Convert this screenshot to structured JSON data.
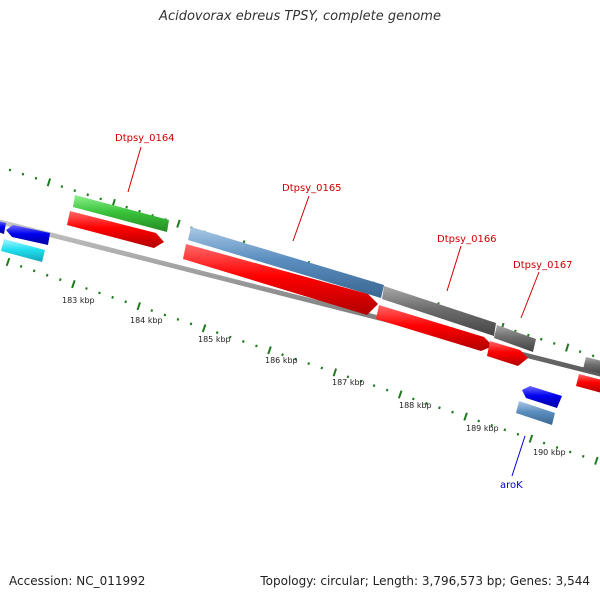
{
  "title": "Acidovorax ebreus TPSY, complete genome",
  "footer": {
    "accession": "Accession: NC_011992",
    "summary": "Topology: circular; Length: 3,796,573 bp; Genes: 3,544"
  },
  "colors": {
    "backbone": "#8c8c8c",
    "tick": "#1f7a1f",
    "red": "#ff0000",
    "green": "#3cc43c",
    "steelblue": "#5b8fc0",
    "gray": "#6e6e6e",
    "blue": "#0000ee",
    "cyan": "#22e0f0",
    "label_red": "#cc0000",
    "label_blue": "#0000cc"
  },
  "scale_labels": [
    "183 kbp",
    "184 kbp",
    "185 kbp",
    "186 kbp",
    "187 kbp",
    "188 kbp",
    "189 kbp",
    "190 kbp"
  ],
  "gene_labels": [
    {
      "name": "Dtpsy_0164",
      "color": "red"
    },
    {
      "name": "Dtpsy_0165",
      "color": "red"
    },
    {
      "name": "Dtpsy_0166",
      "color": "red"
    },
    {
      "name": "Dtpsy_0167",
      "color": "red"
    },
    {
      "name": "aroK",
      "color": "blue"
    }
  ]
}
